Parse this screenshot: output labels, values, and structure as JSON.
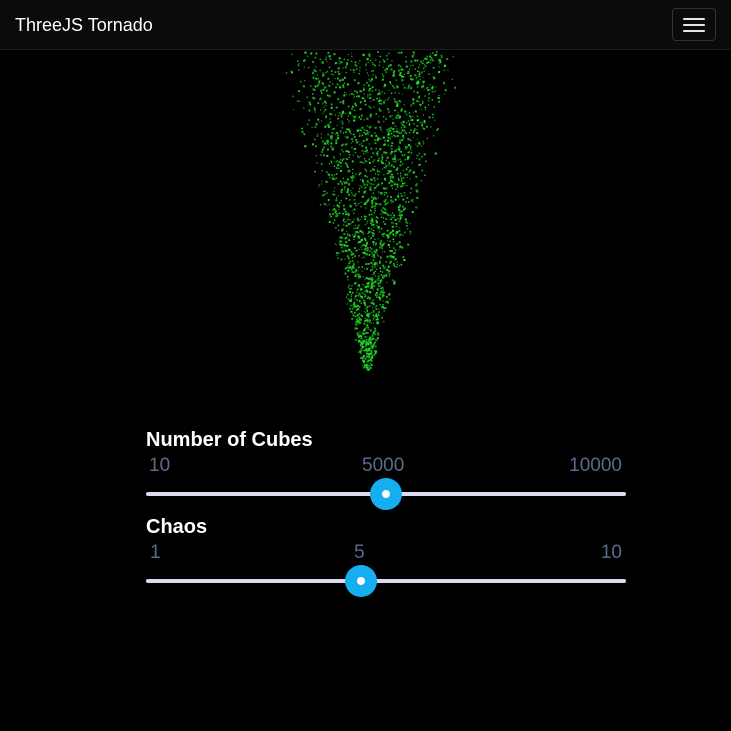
{
  "navbar": {
    "brand": "ThreeJS Tornado",
    "menu_icon": "hamburger-menu-icon"
  },
  "visualization": {
    "particle_color": "#22e02a",
    "background": "#000000"
  },
  "sliders": [
    {
      "label": "Number of Cubes",
      "min_label": "10",
      "mid_label": "5000",
      "max_label": "10000",
      "min": 10,
      "max": 10000,
      "value": 5000
    },
    {
      "label": "Chaos",
      "min_label": "1",
      "mid_label": "5",
      "max_label": "10",
      "min": 1,
      "max": 10,
      "value": 5
    }
  ],
  "colors": {
    "thumb": "#15aef0",
    "track": "#d9dcf0",
    "tick_text": "#5c6b8a"
  }
}
